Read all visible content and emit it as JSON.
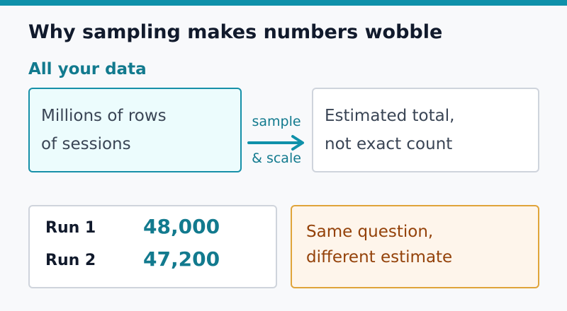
{
  "title": "Why sampling makes numbers wobble",
  "section_label": "All your data",
  "source_box": {
    "line1": "Millions of rows",
    "line2": "of sessions"
  },
  "arrow": {
    "label_top": "sample",
    "label_bottom": "& scale"
  },
  "estimate_box": {
    "line1": "Estimated total,",
    "line2": "not exact count"
  },
  "runs": [
    {
      "label": "Run 1",
      "value": "48,000"
    },
    {
      "label": "Run 2",
      "value": "47,200"
    }
  ],
  "note_box": {
    "line1": "Same question,",
    "line2": "different estimate"
  },
  "colors": {
    "accent": "#0f91aa",
    "accent_text": "#127a8e",
    "note_border": "#e0a43a",
    "note_text": "#94420a"
  }
}
